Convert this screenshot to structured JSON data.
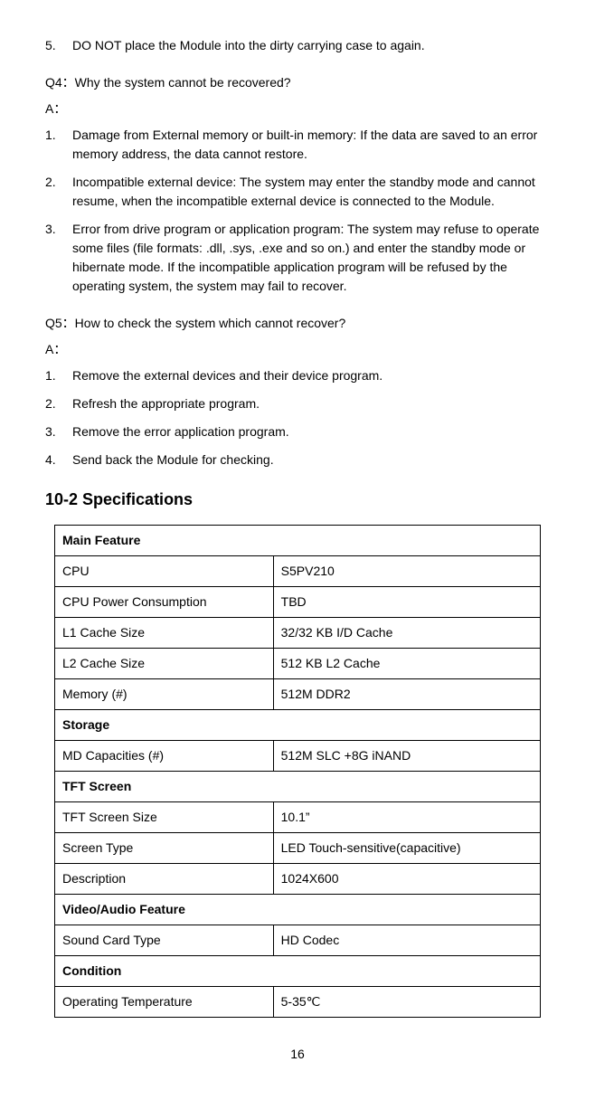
{
  "topItem": {
    "num": "5.",
    "text": "DO NOT place the Module into the dirty carrying case to again."
  },
  "q4": {
    "question": "Q4：Why the system cannot be recovered?",
    "answerLabel": "A：",
    "items": [
      {
        "num": "1.",
        "text": "Damage from External memory or built-in memory: If the data are saved to an error memory address, the data cannot restore."
      },
      {
        "num": "2.",
        "text": "Incompatible external device: The system may enter the standby mode and cannot resume, when the incompatible external device is connected to the Module."
      },
      {
        "num": "3.",
        "text": "Error from drive program or application program: The system may refuse to operate some files (file formats: .dll, .sys, .exe and so on.) and enter the standby mode or hibernate mode. If the incompatible application program will be refused by the operating system, the system may fail to recover."
      }
    ]
  },
  "q5": {
    "question": "Q5：How to check the system which cannot recover?",
    "answerLabel": "A：",
    "items": [
      {
        "num": "1.",
        "text": "Remove the external devices and their device program."
      },
      {
        "num": "2.",
        "text": "Refresh the appropriate program."
      },
      {
        "num": "3.",
        "text": "Remove the error application program."
      },
      {
        "num": "4.",
        "text": "Send back the Module for checking."
      }
    ]
  },
  "specTitle": "10-2 Specifications",
  "specs": [
    {
      "type": "header",
      "label": "Main Feature"
    },
    {
      "type": "row",
      "label": "CPU",
      "value": "S5PV210"
    },
    {
      "type": "row",
      "label": "CPU Power Consumption",
      "value": "TBD"
    },
    {
      "type": "row",
      "label": "L1 Cache Size",
      "value": "32/32 KB I/D Cache"
    },
    {
      "type": "row",
      "label": "L2 Cache Size",
      "value": "512 KB L2 Cache"
    },
    {
      "type": "row",
      "label": "Memory (#)",
      "value": "512M DDR2"
    },
    {
      "type": "header",
      "label": "Storage"
    },
    {
      "type": "row",
      "label": "MD Capacities (#)",
      "value": "512M SLC +8G iNAND"
    },
    {
      "type": "header",
      "label": "TFT Screen"
    },
    {
      "type": "row",
      "label": "TFT Screen Size",
      "value": "10.1”"
    },
    {
      "type": "row",
      "label": "Screen Type",
      "value": "LED Touch-sensitive(capacitive)"
    },
    {
      "type": "row",
      "label": "Description",
      "value": "1024X600"
    },
    {
      "type": "header",
      "label": "Video/Audio Feature"
    },
    {
      "type": "row",
      "label": "Sound Card Type",
      "value": "HD Codec"
    },
    {
      "type": "header",
      "label": "Condition"
    },
    {
      "type": "row",
      "label": "Operating Temperature",
      "value": "5-35℃"
    }
  ],
  "pageNumber": "16"
}
